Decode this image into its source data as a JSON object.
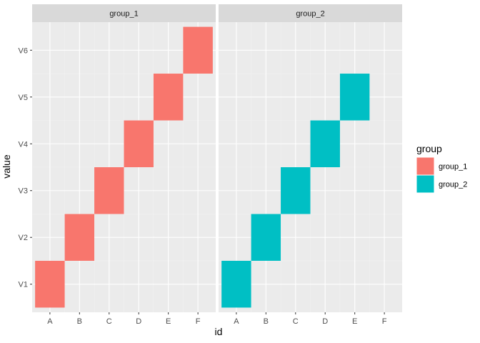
{
  "chart_data": {
    "type": "heatmap",
    "title": "",
    "xlabel": "id",
    "ylabel": "value",
    "x_categories": [
      "A",
      "B",
      "C",
      "D",
      "E",
      "F"
    ],
    "y_categories": [
      "V1",
      "V2",
      "V3",
      "V4",
      "V5",
      "V6"
    ],
    "facets": [
      {
        "label": "group_1",
        "color": "#F8766D",
        "tiles": [
          {
            "x": "A",
            "y": "V1"
          },
          {
            "x": "B",
            "y": "V2"
          },
          {
            "x": "C",
            "y": "V3"
          },
          {
            "x": "D",
            "y": "V4"
          },
          {
            "x": "E",
            "y": "V5"
          },
          {
            "x": "F",
            "y": "V6"
          }
        ]
      },
      {
        "label": "group_2",
        "color": "#00BFC4",
        "tiles": [
          {
            "x": "A",
            "y": "V1"
          },
          {
            "x": "B",
            "y": "V2"
          },
          {
            "x": "C",
            "y": "V3"
          },
          {
            "x": "D",
            "y": "V4"
          },
          {
            "x": "E",
            "y": "V5"
          }
        ]
      }
    ],
    "legend": {
      "title": "group",
      "position": "right",
      "entries": [
        {
          "label": "group_1",
          "color": "#F8766D"
        },
        {
          "label": "group_2",
          "color": "#00BFC4"
        }
      ]
    },
    "grid": true,
    "panel_background": "#EBEBEB",
    "strip_background": "#D9D9D9"
  }
}
